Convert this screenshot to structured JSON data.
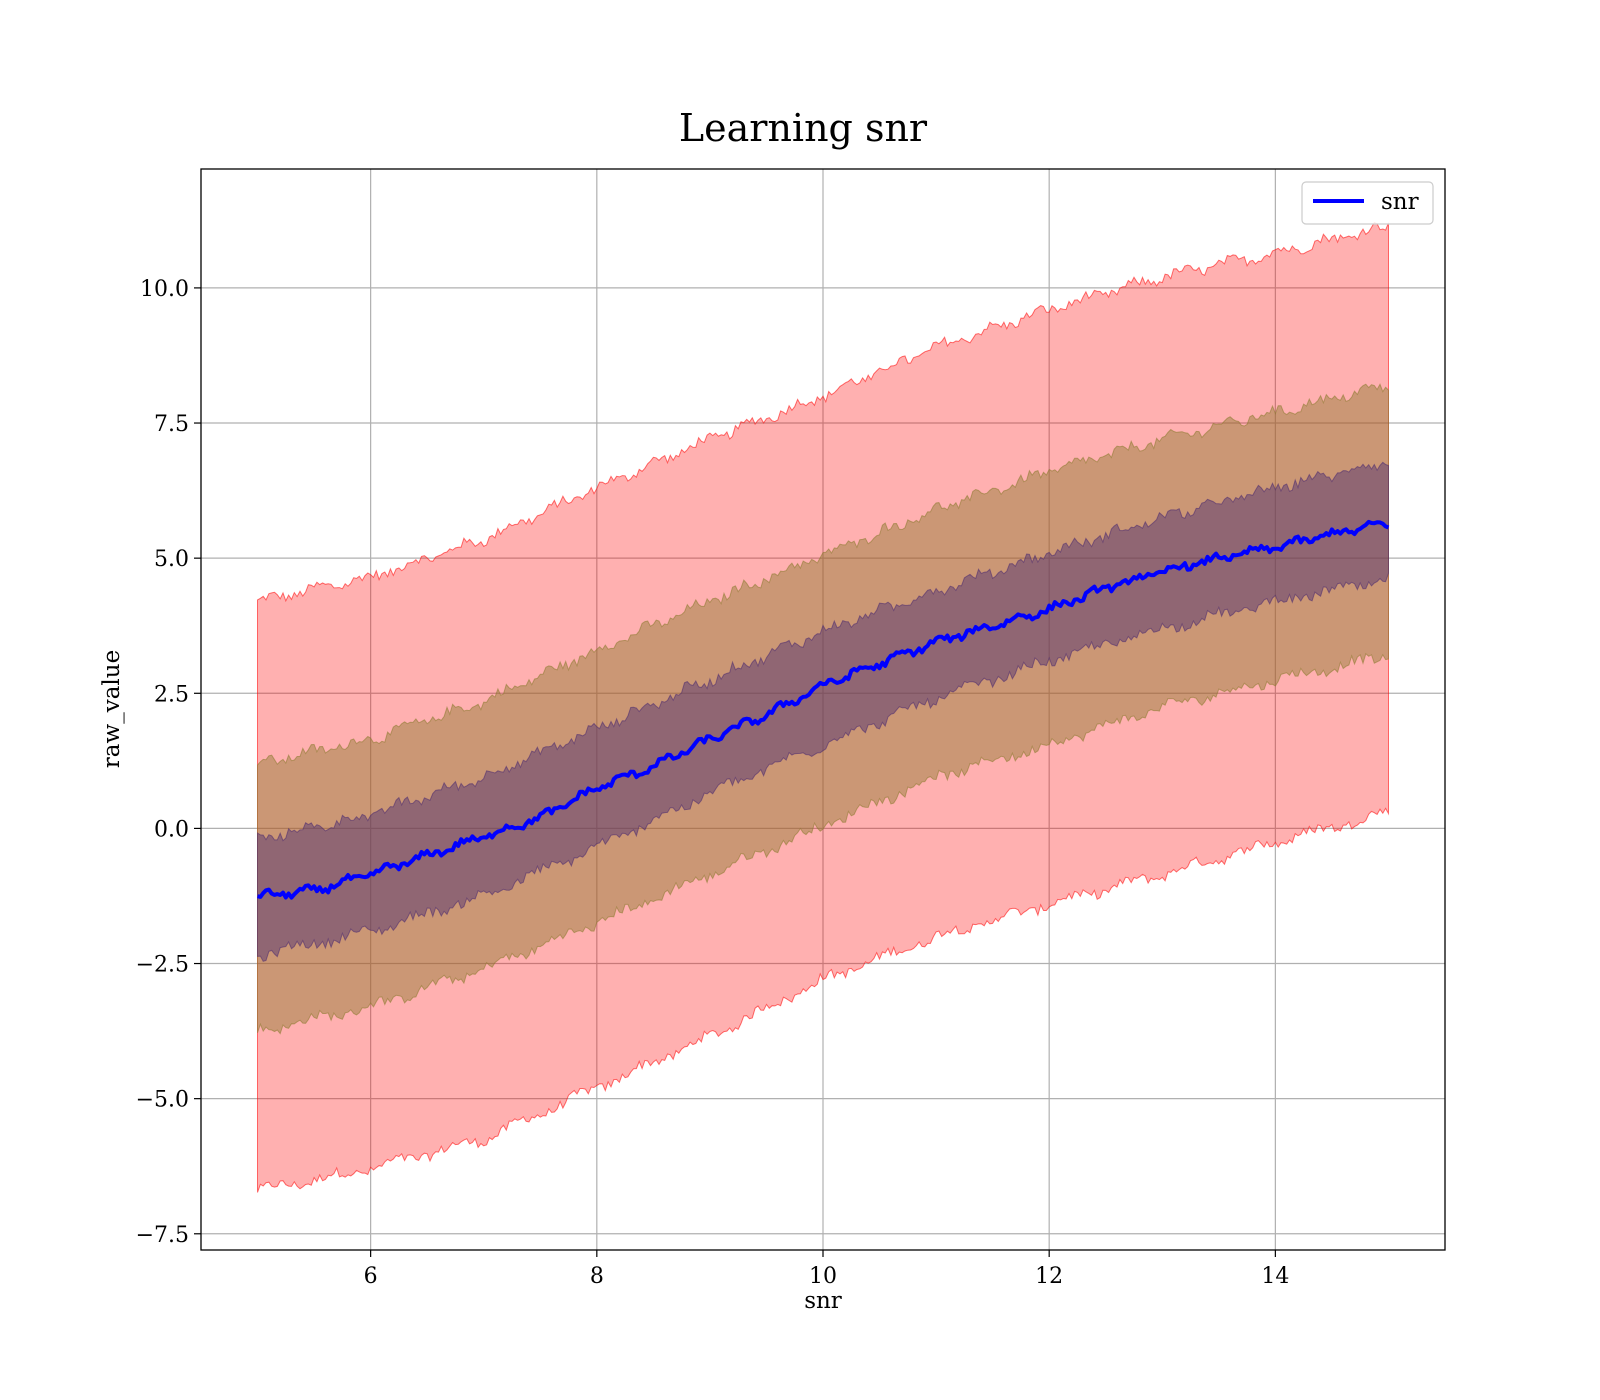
{
  "chart_data": {
    "type": "line",
    "title": "Learning snr",
    "xlabel": "snr",
    "ylabel": "raw_value",
    "xlim": [
      4.5,
      15.5
    ],
    "ylim": [
      -7.8,
      12.2
    ],
    "x_ticks": [
      6,
      8,
      10,
      12,
      14
    ],
    "x_tick_labels": [
      "6",
      "8",
      "10",
      "12",
      "14"
    ],
    "y_ticks": [
      -7.5,
      -5.0,
      -2.5,
      0.0,
      2.5,
      5.0,
      7.5,
      10.0
    ],
    "y_tick_labels": [
      "−7.5",
      "−5.0",
      "−2.5",
      "0.0",
      "2.5",
      "5.0",
      "7.5",
      "10.0"
    ],
    "grid": true,
    "legend": {
      "position": "top-right",
      "entries": [
        {
          "label": "snr",
          "color": "#0000ff"
        }
      ]
    },
    "series": [
      {
        "name": "snr",
        "color": "#0000ff",
        "x": [
          5,
          5.5,
          6,
          6.5,
          7,
          7.5,
          8,
          8.5,
          9,
          9.5,
          10,
          10.5,
          11,
          11.5,
          12,
          12.5,
          13,
          13.5,
          14,
          14.5,
          15
        ],
        "values": [
          -1.25,
          -1.15,
          -0.85,
          -0.5,
          -0.15,
          0.2,
          0.75,
          1.15,
          1.65,
          2.1,
          2.65,
          3.05,
          3.45,
          3.75,
          4.05,
          4.45,
          4.75,
          5.0,
          5.2,
          5.45,
          5.65
        ]
      }
    ],
    "bands": [
      {
        "color": "#ff0000",
        "opacity": 0.31,
        "x": [
          5,
          6,
          7,
          8,
          9,
          10,
          11,
          12,
          13,
          14,
          15
        ],
        "upper": [
          4.2,
          4.65,
          5.35,
          6.3,
          7.2,
          8.0,
          8.9,
          9.6,
          10.2,
          10.65,
          11.15
        ],
        "lower": [
          -6.7,
          -6.3,
          -5.75,
          -4.8,
          -3.85,
          -2.8,
          -2.0,
          -1.4,
          -0.85,
          -0.25,
          0.3
        ]
      },
      {
        "color": "#8b7a2e",
        "opacity": 0.45,
        "x": [
          5,
          6,
          7,
          8,
          9,
          10,
          11,
          12,
          13,
          14,
          15
        ],
        "upper": [
          1.2,
          1.65,
          2.35,
          3.3,
          4.2,
          5.05,
          5.9,
          6.6,
          7.2,
          7.7,
          8.2
        ],
        "lower": [
          -3.75,
          -3.3,
          -2.6,
          -1.75,
          -0.85,
          0.05,
          0.95,
          1.55,
          2.25,
          2.75,
          3.2
        ]
      },
      {
        "color": "#4a2a70",
        "opacity": 0.45,
        "x": [
          5,
          6,
          7,
          8,
          9,
          10,
          11,
          12,
          13,
          14,
          15
        ],
        "upper": [
          -0.2,
          0.25,
          0.95,
          1.85,
          2.75,
          3.65,
          4.4,
          5.1,
          5.75,
          6.3,
          6.8
        ],
        "lower": [
          -2.35,
          -1.9,
          -1.25,
          -0.35,
          0.65,
          1.55,
          2.4,
          3.1,
          3.7,
          4.2,
          4.6
        ]
      }
    ]
  }
}
